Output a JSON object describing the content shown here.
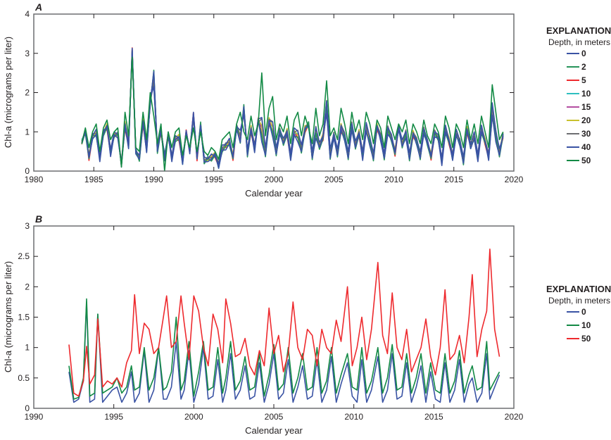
{
  "chart_data": [
    {
      "type": "line",
      "panel_label": "A",
      "title": "",
      "xlabel": "Calendar year",
      "ylabel": "Chl-a  (micrograms per liter)",
      "xlim": [
        1980,
        2020
      ],
      "ylim": [
        0,
        4
      ],
      "xticks": [
        "1980",
        "1985",
        "1990",
        "1995",
        "2000",
        "2005",
        "2010",
        "2015",
        "2020"
      ],
      "yticks": [
        "0",
        "1",
        "2",
        "3",
        "4"
      ],
      "grid": false,
      "legend": {
        "title": "EXPLANATION",
        "subtitle": "Depth, in meters",
        "placement": "right"
      },
      "series": [
        {
          "name": "0",
          "color": "#3a53a4"
        },
        {
          "name": "2",
          "color": "#27945a"
        },
        {
          "name": "5",
          "color": "#ee2a2e"
        },
        {
          "name": "10",
          "color": "#2ebfc0"
        },
        {
          "name": "15",
          "color": "#b44ea1"
        },
        {
          "name": "20",
          "color": "#c9c12d"
        },
        {
          "name": "30",
          "color": "#6d6e71"
        },
        {
          "name": "40",
          "color": "#3a53a4"
        },
        {
          "name": "50",
          "color": "#138a45"
        }
      ],
      "x": [
        1984.0,
        1984.3,
        1984.6,
        1984.9,
        1985.2,
        1985.5,
        1985.8,
        1986.1,
        1986.4,
        1986.7,
        1987.0,
        1987.3,
        1987.6,
        1987.9,
        1988.2,
        1988.5,
        1988.8,
        1989.1,
        1989.4,
        1989.7,
        1990.0,
        1990.3,
        1990.6,
        1990.9,
        1991.2,
        1991.5,
        1991.8,
        1992.1,
        1992.4,
        1992.7,
        1993.0,
        1993.3,
        1993.6,
        1993.9,
        1994.2,
        1994.5,
        1994.8,
        1995.1,
        1995.4,
        1995.7,
        1996.0,
        1996.3,
        1996.6,
        1996.9,
        1997.2,
        1997.5,
        1997.8,
        1998.1,
        1998.4,
        1998.7,
        1999.0,
        1999.3,
        1999.6,
        1999.9,
        2000.2,
        2000.5,
        2000.8,
        2001.1,
        2001.4,
        2001.7,
        2002.0,
        2002.3,
        2002.6,
        2002.9,
        2003.2,
        2003.5,
        2003.8,
        2004.1,
        2004.4,
        2004.7,
        2005.0,
        2005.3,
        2005.6,
        2005.9,
        2006.2,
        2006.5,
        2006.8,
        2007.1,
        2007.4,
        2007.7,
        2008.0,
        2008.3,
        2008.6,
        2008.9,
        2009.2,
        2009.5,
        2009.8,
        2010.1,
        2010.4,
        2010.7,
        2011.0,
        2011.3,
        2011.6,
        2011.9,
        2012.2,
        2012.5,
        2012.8,
        2013.1,
        2013.4,
        2013.7,
        2014.0,
        2014.3,
        2014.6,
        2014.9,
        2015.2,
        2015.5,
        2015.8,
        2016.1,
        2016.4,
        2016.7,
        2017.0,
        2017.3,
        2017.6,
        2017.9,
        2018.2,
        2018.5,
        2018.8,
        2019.1
      ],
      "base": [
        0.75,
        1.0,
        0.3,
        0.85,
        0.9,
        0.3,
        0.95,
        1.1,
        0.4,
        0.9,
        0.9,
        0.2,
        1.1,
        0.6,
        3.1,
        0.5,
        0.3,
        1.2,
        0.5,
        1.7,
        2.6,
        0.5,
        1.0,
        0.4,
        0.9,
        0.3,
        0.8,
        0.8,
        0.2,
        1.0,
        0.5,
        1.5,
        0.3,
        1.2,
        0.2,
        0.3,
        0.3,
        0.4,
        0.1,
        0.5,
        0.6,
        0.7,
        0.3,
        1.1,
        0.7,
        1.7,
        0.4,
        1.0,
        0.5,
        1.3,
        0.8,
        0.4,
        1.2,
        0.9,
        0.4,
        1.0,
        0.7,
        0.9,
        0.3,
        0.9,
        0.8,
        0.5,
        1.0,
        1.2,
        0.3,
        0.9,
        0.6,
        0.8,
        1.5,
        0.3,
        0.9,
        0.4,
        1.0,
        0.8,
        0.3,
        1.1,
        0.6,
        0.9,
        0.3,
        1.0,
        0.7,
        0.3,
        1.1,
        0.8,
        0.3,
        1.0,
        0.8,
        0.4,
        1.1,
        0.6,
        0.9,
        0.3,
        0.9,
        0.7,
        0.3,
        1.0,
        0.7,
        0.3,
        0.9,
        0.8,
        0.2,
        1.0,
        0.7,
        0.3,
        0.9,
        0.7,
        0.2,
        1.0,
        0.6,
        0.8,
        0.3,
        1.0,
        0.7,
        0.3,
        1.4,
        0.8,
        0.4,
        0.9
      ],
      "deep_50": [
        0.7,
        1.1,
        0.6,
        1.0,
        1.2,
        0.5,
        1.1,
        1.3,
        0.8,
        1.0,
        1.1,
        0.1,
        1.5,
        0.9,
        2.9,
        0.6,
        0.5,
        1.5,
        0.8,
        2.0,
        1.4,
        0.7,
        1.2,
        0.0,
        1.0,
        0.6,
        1.0,
        1.1,
        0.4,
        0.9,
        0.6,
        1.1,
        0.5,
        1.0,
        0.5,
        0.4,
        0.6,
        0.5,
        0.3,
        0.8,
        0.9,
        1.0,
        0.6,
        1.2,
        1.5,
        1.0,
        0.8,
        1.4,
        0.9,
        1.2,
        2.5,
        0.9,
        1.6,
        1.9,
        0.8,
        1.2,
        1.0,
        1.4,
        0.7,
        1.3,
        1.5,
        0.9,
        1.4,
        1.1,
        0.7,
        1.6,
        0.9,
        1.2,
        2.3,
        0.9,
        1.1,
        0.8,
        1.6,
        1.2,
        0.7,
        1.5,
        1.0,
        1.3,
        0.8,
        1.5,
        1.2,
        0.7,
        1.3,
        1.1,
        0.6,
        1.4,
        1.1,
        0.8,
        1.2,
        1.0,
        1.3,
        0.7,
        1.2,
        1.0,
        0.7,
        1.3,
        0.9,
        0.7,
        1.2,
        1.0,
        0.6,
        1.4,
        1.1,
        0.6,
        1.2,
        1.0,
        0.6,
        1.3,
        0.8,
        1.2,
        0.7,
        1.4,
        1.0,
        0.6,
        2.2,
        1.5,
        0.8,
        1.0
      ]
    },
    {
      "type": "line",
      "panel_label": "B",
      "title": "",
      "xlabel": "Calendar year",
      "ylabel": "Chl-a  (micrograms per liter)",
      "xlim": [
        1990,
        2020
      ],
      "ylim": [
        0,
        3
      ],
      "xticks": [
        "1990",
        "1995",
        "2000",
        "2005",
        "2010",
        "2015",
        "2020"
      ],
      "yticks": [
        "0",
        "0.5",
        "1",
        "1.5",
        "2",
        "2.5",
        "3"
      ],
      "grid": false,
      "legend": {
        "title": "EXPLANATION",
        "subtitle": "Depth, in meters",
        "placement": "right"
      },
      "x": [
        1992.2,
        1992.5,
        1992.8,
        1993.1,
        1993.3,
        1993.5,
        1993.8,
        1994.0,
        1994.3,
        1994.6,
        1994.9,
        1995.2,
        1995.5,
        1995.8,
        1996.1,
        1996.3,
        1996.6,
        1996.9,
        1997.2,
        1997.5,
        1997.8,
        1998.1,
        1998.3,
        1998.6,
        1998.9,
        1999.2,
        1999.4,
        1999.7,
        2000.0,
        2000.3,
        2000.6,
        2000.9,
        2001.2,
        2001.5,
        2001.8,
        2002.0,
        2002.3,
        2002.6,
        2002.9,
        2003.2,
        2003.5,
        2003.8,
        2004.1,
        2004.4,
        2004.7,
        2005.0,
        2005.3,
        2005.6,
        2005.9,
        2006.2,
        2006.5,
        2006.8,
        2007.1,
        2007.4,
        2007.7,
        2008.0,
        2008.3,
        2008.6,
        2008.9,
        2009.2,
        2009.6,
        2009.9,
        2010.2,
        2010.5,
        2010.8,
        2011.1,
        2011.5,
        2011.8,
        2012.1,
        2012.4,
        2012.7,
        2013.0,
        2013.3,
        2013.6,
        2013.9,
        2014.2,
        2014.5,
        2014.8,
        2015.1,
        2015.4,
        2015.7,
        2016.0,
        2016.3,
        2016.6,
        2016.9,
        2017.2,
        2017.4,
        2017.7,
        2018.0,
        2018.3,
        2018.5,
        2018.8,
        2019.1
      ],
      "series": [
        {
          "name": "0",
          "color": "#3a53a4",
          "values": [
            0.6,
            0.1,
            0.15,
            0.45,
            1.75,
            0.1,
            0.15,
            1.55,
            0.1,
            0.2,
            0.3,
            0.35,
            0.1,
            0.25,
            0.6,
            0.1,
            0.25,
            0.95,
            0.1,
            0.3,
            1.0,
            0.15,
            0.15,
            0.35,
            1.1,
            0.15,
            0.3,
            0.95,
            0.1,
            0.4,
            1.0,
            0.15,
            0.2,
            0.8,
            0.1,
            0.3,
            0.9,
            0.15,
            0.3,
            0.7,
            0.15,
            0.2,
            0.75,
            0.1,
            0.4,
            0.9,
            0.15,
            0.25,
            0.8,
            0.1,
            0.35,
            0.7,
            0.15,
            0.2,
            0.8,
            0.1,
            0.3,
            0.85,
            0.1,
            0.4,
            0.75,
            0.2,
            0.1,
            0.8,
            0.1,
            0.3,
            0.85,
            0.1,
            0.3,
            0.9,
            0.15,
            0.2,
            0.75,
            0.1,
            0.35,
            0.7,
            0.1,
            0.6,
            0.15,
            0.1,
            0.75,
            0.1,
            0.3,
            0.8,
            0.1,
            0.4,
            0.5,
            0.1,
            0.25,
            0.9,
            0.15,
            0.35,
            0.55
          ]
        },
        {
          "name": "10",
          "color": "#138a45",
          "values": [
            0.7,
            0.15,
            0.18,
            0.5,
            1.8,
            0.2,
            0.25,
            1.55,
            0.25,
            0.3,
            0.35,
            0.5,
            0.25,
            0.35,
            0.7,
            0.3,
            0.35,
            1.0,
            0.3,
            0.5,
            1.0,
            0.3,
            0.35,
            0.6,
            1.5,
            0.3,
            0.45,
            1.1,
            0.2,
            0.6,
            1.1,
            0.3,
            0.35,
            1.0,
            0.25,
            0.5,
            1.1,
            0.3,
            0.45,
            0.85,
            0.3,
            0.35,
            0.9,
            0.2,
            0.55,
            1.05,
            0.3,
            0.4,
            1.0,
            0.25,
            0.5,
            0.9,
            0.3,
            0.35,
            1.0,
            0.25,
            0.45,
            1.0,
            0.25,
            0.55,
            0.9,
            0.35,
            0.3,
            1.0,
            0.25,
            0.45,
            1.0,
            0.25,
            0.5,
            1.05,
            0.3,
            0.35,
            0.9,
            0.25,
            0.5,
            0.9,
            0.25,
            0.75,
            0.3,
            0.25,
            0.9,
            0.25,
            0.45,
            0.95,
            0.25,
            0.55,
            0.7,
            0.3,
            0.35,
            1.1,
            0.3,
            0.45,
            0.6
          ]
        },
        {
          "name": "50",
          "color": "#ee2a2e",
          "values": [
            1.05,
            0.25,
            0.2,
            0.45,
            1.02,
            0.4,
            0.55,
            1.47,
            0.35,
            0.45,
            0.4,
            0.5,
            0.35,
            0.75,
            0.95,
            1.87,
            0.9,
            1.4,
            1.3,
            0.9,
            1.0,
            1.5,
            1.85,
            1.0,
            1.1,
            1.85,
            1.4,
            0.8,
            1.85,
            1.6,
            1.0,
            0.7,
            1.55,
            1.3,
            0.75,
            1.8,
            1.4,
            0.85,
            0.9,
            1.15,
            0.7,
            0.55,
            0.95,
            0.7,
            1.65,
            0.9,
            1.2,
            0.6,
            0.9,
            1.75,
            1.0,
            0.8,
            1.3,
            1.2,
            0.7,
            1.3,
            1.0,
            0.9,
            1.45,
            1.1,
            2.0,
            0.7,
            1.0,
            1.5,
            0.8,
            1.3,
            2.4,
            1.2,
            0.9,
            1.9,
            1.0,
            0.8,
            1.3,
            0.6,
            0.8,
            1.0,
            1.47,
            0.85,
            0.55,
            1.0,
            1.95,
            0.8,
            0.9,
            1.2,
            0.75,
            1.5,
            2.2,
            0.85,
            1.3,
            1.6,
            2.62,
            1.3,
            0.85
          ]
        }
      ]
    }
  ]
}
